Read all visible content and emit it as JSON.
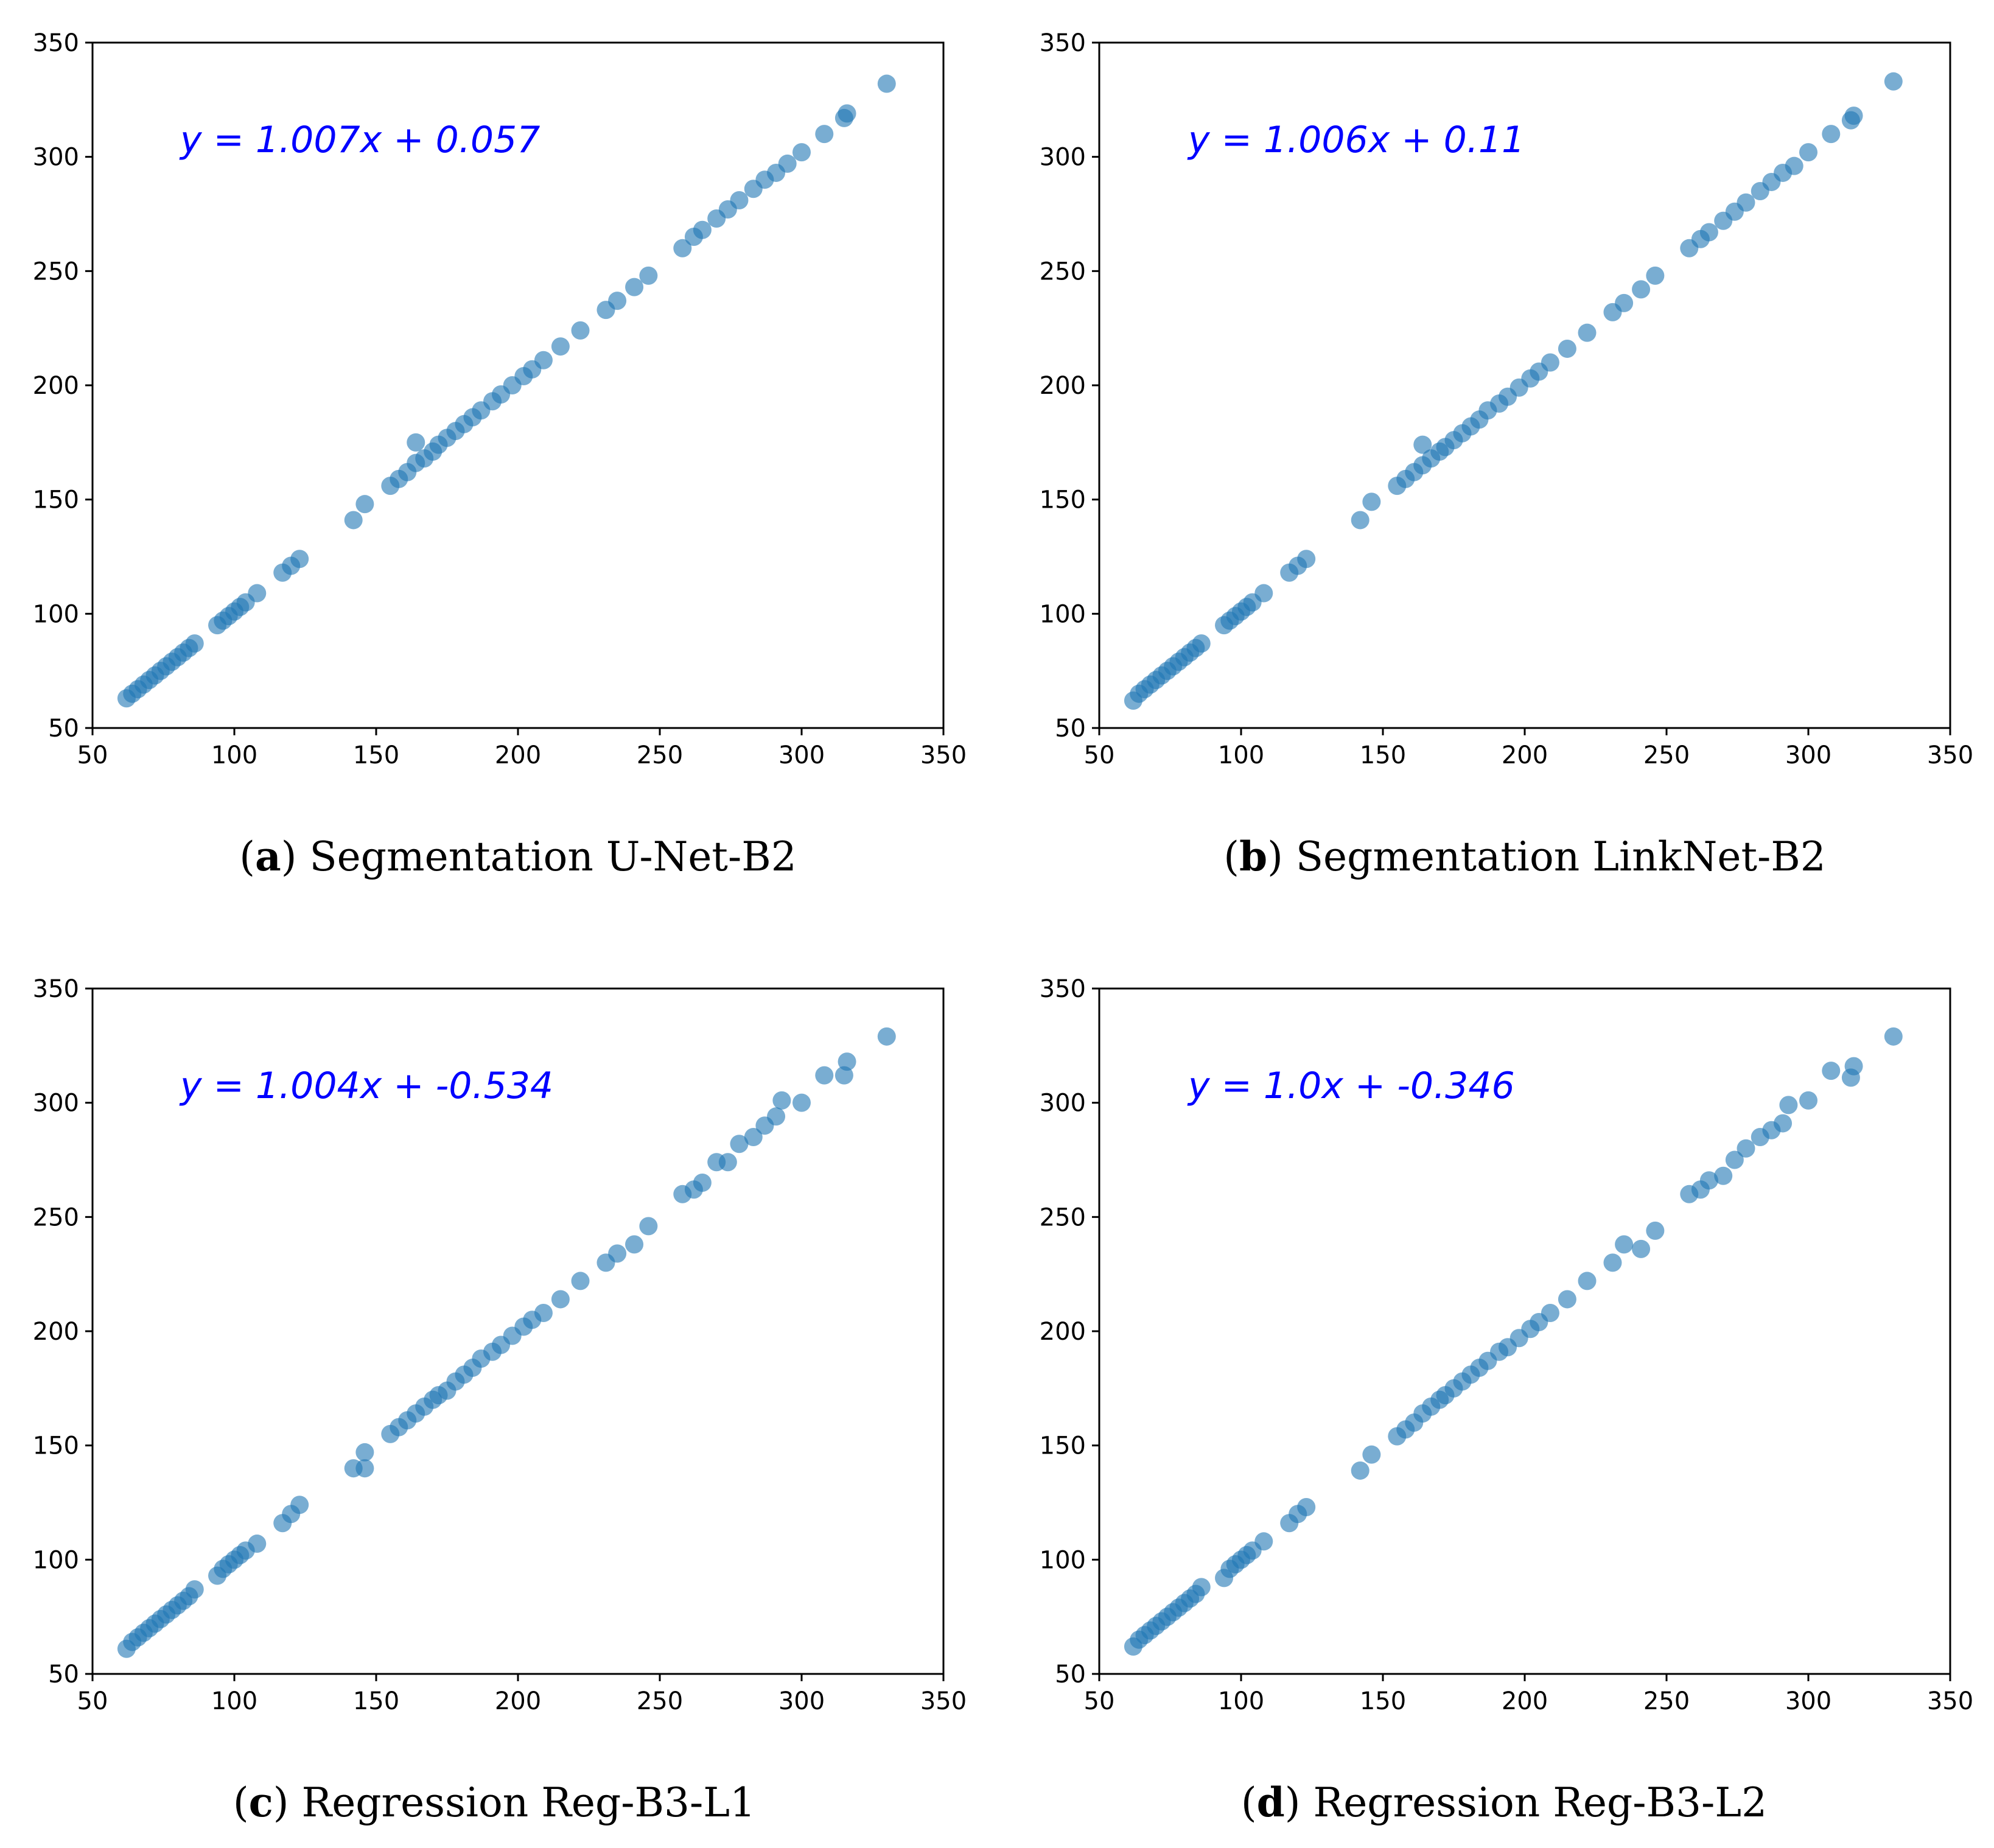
{
  "colors": {
    "point": "#1f77b4",
    "equation": "#0000ff",
    "axis": "#000000"
  },
  "chart_data": [
    {
      "type": "scatter",
      "panel_letter": "a",
      "caption": "Segmentation U-Net-B2",
      "equation": "y = 1.007x + 0.057",
      "slope": 1.007,
      "intercept": 0.057,
      "xlim": [
        50,
        350
      ],
      "ylim": [
        50,
        350
      ],
      "xticks": [
        "50",
        "100",
        "150",
        "200",
        "250",
        "300",
        "350"
      ],
      "yticks": [
        "50",
        "100",
        "150",
        "200",
        "250",
        "300",
        "350"
      ],
      "x": [
        62,
        64,
        66,
        68,
        70,
        72,
        74,
        76,
        78,
        80,
        82,
        84,
        86,
        94,
        96,
        98,
        100,
        102,
        104,
        108,
        117,
        120,
        123,
        142,
        146,
        155,
        158,
        161,
        164,
        164,
        167,
        170,
        172,
        175,
        178,
        181,
        184,
        187,
        191,
        194,
        198,
        202,
        205,
        209,
        215,
        222,
        231,
        235,
        241,
        246,
        258,
        262,
        265,
        270,
        274,
        278,
        283,
        287,
        291,
        295,
        300,
        308,
        315,
        316,
        330
      ],
      "y": [
        63,
        65,
        67,
        69,
        71,
        73,
        75,
        77,
        79,
        81,
        83,
        85,
        87,
        95,
        97,
        99,
        101,
        103,
        105,
        109,
        118,
        121,
        124,
        141,
        148,
        156,
        159,
        162,
        166,
        175,
        168,
        171,
        174,
        177,
        180,
        183,
        186,
        189,
        193,
        196,
        200,
        204,
        207,
        211,
        217,
        224,
        233,
        237,
        243,
        248,
        260,
        265,
        268,
        273,
        277,
        281,
        286,
        290,
        293,
        297,
        302,
        310,
        317,
        319,
        332
      ]
    },
    {
      "type": "scatter",
      "panel_letter": "b",
      "caption": "Segmentation LinkNet-B2",
      "equation": "y = 1.006x + 0.11",
      "slope": 1.006,
      "intercept": 0.11,
      "xlim": [
        50,
        350
      ],
      "ylim": [
        50,
        350
      ],
      "xticks": [
        "50",
        "100",
        "150",
        "200",
        "250",
        "300",
        "350"
      ],
      "yticks": [
        "50",
        "100",
        "150",
        "200",
        "250",
        "300",
        "350"
      ],
      "x": [
        62,
        64,
        66,
        68,
        70,
        72,
        74,
        76,
        78,
        80,
        82,
        84,
        86,
        94,
        96,
        98,
        100,
        102,
        104,
        108,
        117,
        120,
        123,
        142,
        146,
        155,
        158,
        161,
        164,
        164,
        167,
        170,
        172,
        175,
        178,
        181,
        184,
        187,
        191,
        194,
        198,
        202,
        205,
        209,
        215,
        222,
        231,
        235,
        241,
        246,
        258,
        262,
        265,
        270,
        274,
        278,
        283,
        287,
        291,
        295,
        300,
        308,
        315,
        316,
        330
      ],
      "y": [
        62,
        65,
        67,
        69,
        71,
        73,
        75,
        77,
        79,
        81,
        83,
        85,
        87,
        95,
        97,
        99,
        101,
        103,
        105,
        109,
        118,
        121,
        124,
        141,
        149,
        156,
        159,
        162,
        165,
        174,
        168,
        171,
        173,
        176,
        179,
        182,
        185,
        189,
        192,
        195,
        199,
        203,
        206,
        210,
        216,
        223,
        232,
        236,
        242,
        248,
        260,
        264,
        267,
        272,
        276,
        280,
        285,
        289,
        293,
        296,
        302,
        310,
        316,
        318,
        333
      ]
    },
    {
      "type": "scatter",
      "panel_letter": "c",
      "caption": "Regression Reg-B3-L1",
      "equation": "y = 1.004x + -0.534",
      "slope": 1.004,
      "intercept": -0.534,
      "xlim": [
        50,
        350
      ],
      "ylim": [
        50,
        350
      ],
      "xticks": [
        "50",
        "100",
        "150",
        "200",
        "250",
        "300",
        "350"
      ],
      "yticks": [
        "50",
        "100",
        "150",
        "200",
        "250",
        "300",
        "350"
      ],
      "x": [
        62,
        64,
        66,
        68,
        70,
        72,
        74,
        76,
        78,
        80,
        82,
        84,
        86,
        94,
        96,
        98,
        100,
        102,
        104,
        108,
        117,
        120,
        123,
        142,
        146,
        146,
        155,
        158,
        161,
        164,
        167,
        170,
        172,
        175,
        178,
        181,
        184,
        187,
        191,
        194,
        198,
        202,
        205,
        209,
        215,
        222,
        231,
        235,
        241,
        246,
        258,
        262,
        265,
        270,
        274,
        278,
        283,
        287,
        291,
        293,
        300,
        308,
        315,
        316,
        330
      ],
      "y": [
        61,
        64,
        66,
        68,
        70,
        72,
        74,
        76,
        78,
        80,
        82,
        84,
        87,
        93,
        96,
        98,
        100,
        102,
        104,
        107,
        116,
        120,
        124,
        140,
        147,
        140,
        155,
        158,
        161,
        164,
        167,
        170,
        172,
        174,
        178,
        181,
        184,
        188,
        191,
        194,
        198,
        202,
        205,
        208,
        214,
        222,
        230,
        234,
        238,
        246,
        260,
        262,
        265,
        274,
        274,
        282,
        285,
        290,
        294,
        301,
        300,
        312,
        312,
        318,
        329
      ]
    },
    {
      "type": "scatter",
      "panel_letter": "d",
      "caption": "Regression Reg-B3-L2",
      "equation": "y = 1.0x + -0.346",
      "slope": 1.0,
      "intercept": -0.346,
      "xlim": [
        50,
        350
      ],
      "ylim": [
        50,
        350
      ],
      "xticks": [
        "50",
        "100",
        "150",
        "200",
        "250",
        "300",
        "350"
      ],
      "yticks": [
        "50",
        "100",
        "150",
        "200",
        "250",
        "300",
        "350"
      ],
      "x": [
        62,
        64,
        66,
        68,
        70,
        72,
        74,
        76,
        78,
        80,
        82,
        84,
        86,
        94,
        96,
        98,
        100,
        102,
        104,
        108,
        117,
        120,
        123,
        142,
        146,
        155,
        158,
        161,
        164,
        167,
        170,
        172,
        175,
        178,
        181,
        184,
        187,
        191,
        194,
        198,
        202,
        205,
        209,
        215,
        222,
        231,
        235,
        241,
        246,
        258,
        262,
        265,
        270,
        274,
        278,
        283,
        287,
        291,
        293,
        300,
        308,
        315,
        316,
        330
      ],
      "y": [
        62,
        65,
        67,
        69,
        71,
        73,
        75,
        77,
        79,
        81,
        83,
        85,
        88,
        92,
        96,
        98,
        100,
        102,
        104,
        108,
        116,
        120,
        123,
        139,
        146,
        154,
        157,
        160,
        164,
        167,
        170,
        172,
        175,
        178,
        181,
        184,
        187,
        191,
        193,
        197,
        201,
        204,
        208,
        214,
        222,
        230,
        238,
        236,
        244,
        260,
        262,
        266,
        268,
        275,
        280,
        285,
        288,
        291,
        299,
        301,
        314,
        311,
        316,
        329
      ]
    }
  ]
}
